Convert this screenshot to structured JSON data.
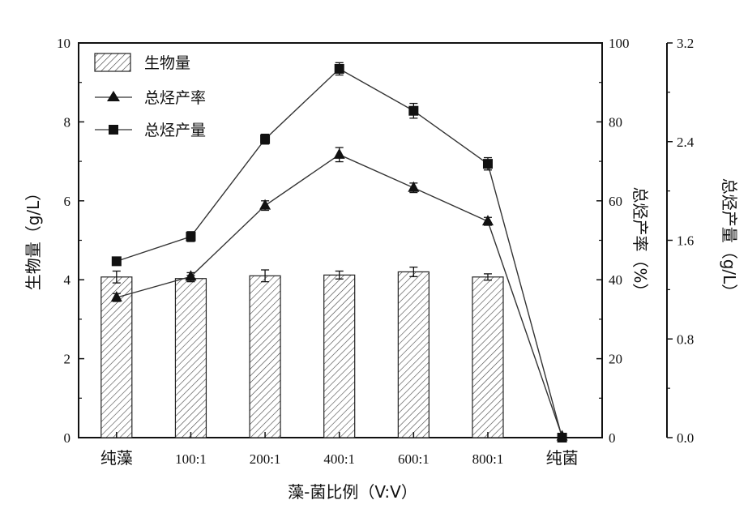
{
  "chart_data": {
    "type": "bar",
    "xlabel": "藻-菌比例（V:V）",
    "categories": [
      "纯藻",
      "100:1",
      "200:1",
      "400:1",
      "600:1",
      "800:1",
      "纯菌"
    ],
    "axes": {
      "left": {
        "label": "生物量（g/L）",
        "ylim": [
          0,
          10
        ],
        "ticks": [
          "0",
          "2",
          "4",
          "6",
          "8",
          "10"
        ]
      },
      "right1": {
        "label": "总烃产率（%）",
        "ylim": [
          0,
          100
        ],
        "ticks": [
          "0",
          "20",
          "40",
          "60",
          "80",
          "100"
        ]
      },
      "right2": {
        "label": "总烃产量（g/L）",
        "ylim": [
          0,
          3.2
        ],
        "ticks": [
          "0.0",
          "0.8",
          "1.6",
          "2.4",
          "3.2"
        ]
      }
    },
    "series": [
      {
        "name": "生物量",
        "type": "bar",
        "axis": "left",
        "color": "#333333",
        "values": [
          4.07,
          4.03,
          4.1,
          4.12,
          4.2,
          4.07,
          null
        ],
        "errors": [
          0.15,
          0.08,
          0.15,
          0.1,
          0.12,
          0.08,
          null
        ]
      },
      {
        "name": "总烃产率",
        "type": "line",
        "marker": "triangle",
        "axis": "right1",
        "color": "#333333",
        "values": [
          35.5,
          40.8,
          58.8,
          71.7,
          63.3,
          54.8,
          0.3
        ],
        "errors": [
          1.0,
          1.0,
          1.2,
          1.8,
          1.2,
          1.0,
          0.3
        ]
      },
      {
        "name": "总烃产量",
        "type": "line",
        "marker": "square",
        "axis": "right2",
        "color": "#333333",
        "values": [
          1.43,
          1.63,
          2.42,
          2.99,
          2.65,
          2.22,
          0.0
        ],
        "errors": [
          0.02,
          0.04,
          0.04,
          0.05,
          0.06,
          0.05,
          0.01
        ]
      }
    ],
    "legend": {
      "position": "top-left",
      "entries": [
        "生物量",
        "总烃产率",
        "总烃产量"
      ]
    },
    "grid": false
  }
}
